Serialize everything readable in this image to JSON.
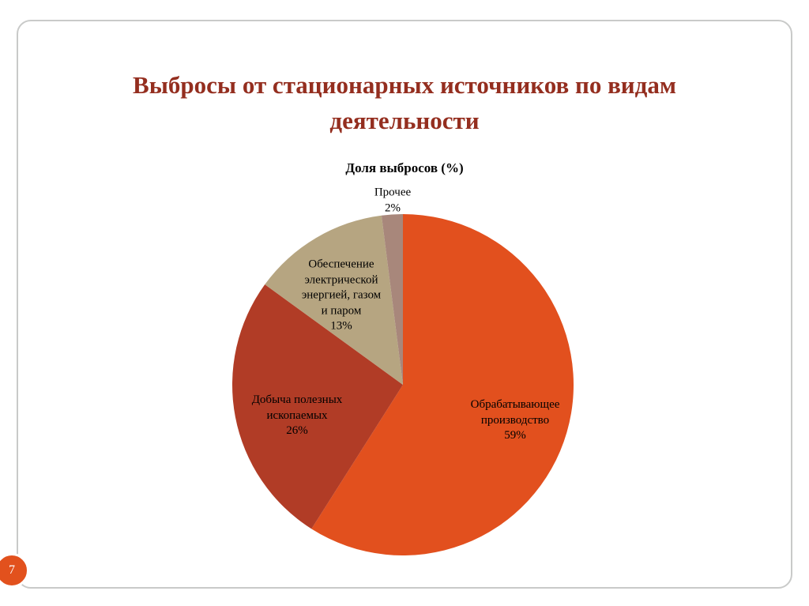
{
  "slide": {
    "title": "Выбросы от стационарных источников по видам деятельности",
    "page_number": "7"
  },
  "chart_data": {
    "type": "pie",
    "title": "Доля выбросов (%)",
    "legend": "none",
    "label_position": "inside",
    "start_angle_deg": 0,
    "direction": "clockwise",
    "slices": [
      {
        "label": "Обрабатывающее производство",
        "value": 59,
        "color": "#e2501e",
        "display": "Обрабатывающее\nпроизводство\n59%"
      },
      {
        "label": "Добыча полезных ископаемых",
        "value": 26,
        "color": "#b13c26",
        "display": "Добыча полезных\nископаемых\n26%"
      },
      {
        "label": "Обеспечение электрической энергией, газом и паром",
        "value": 13,
        "color": "#b6a581",
        "display": "Обеспечение\nэлектрической\nэнергией, газом\nи паром\n13%"
      },
      {
        "label": "Прочее",
        "value": 2,
        "color": "#a8877b",
        "display": "Прочее\n2%"
      }
    ]
  }
}
